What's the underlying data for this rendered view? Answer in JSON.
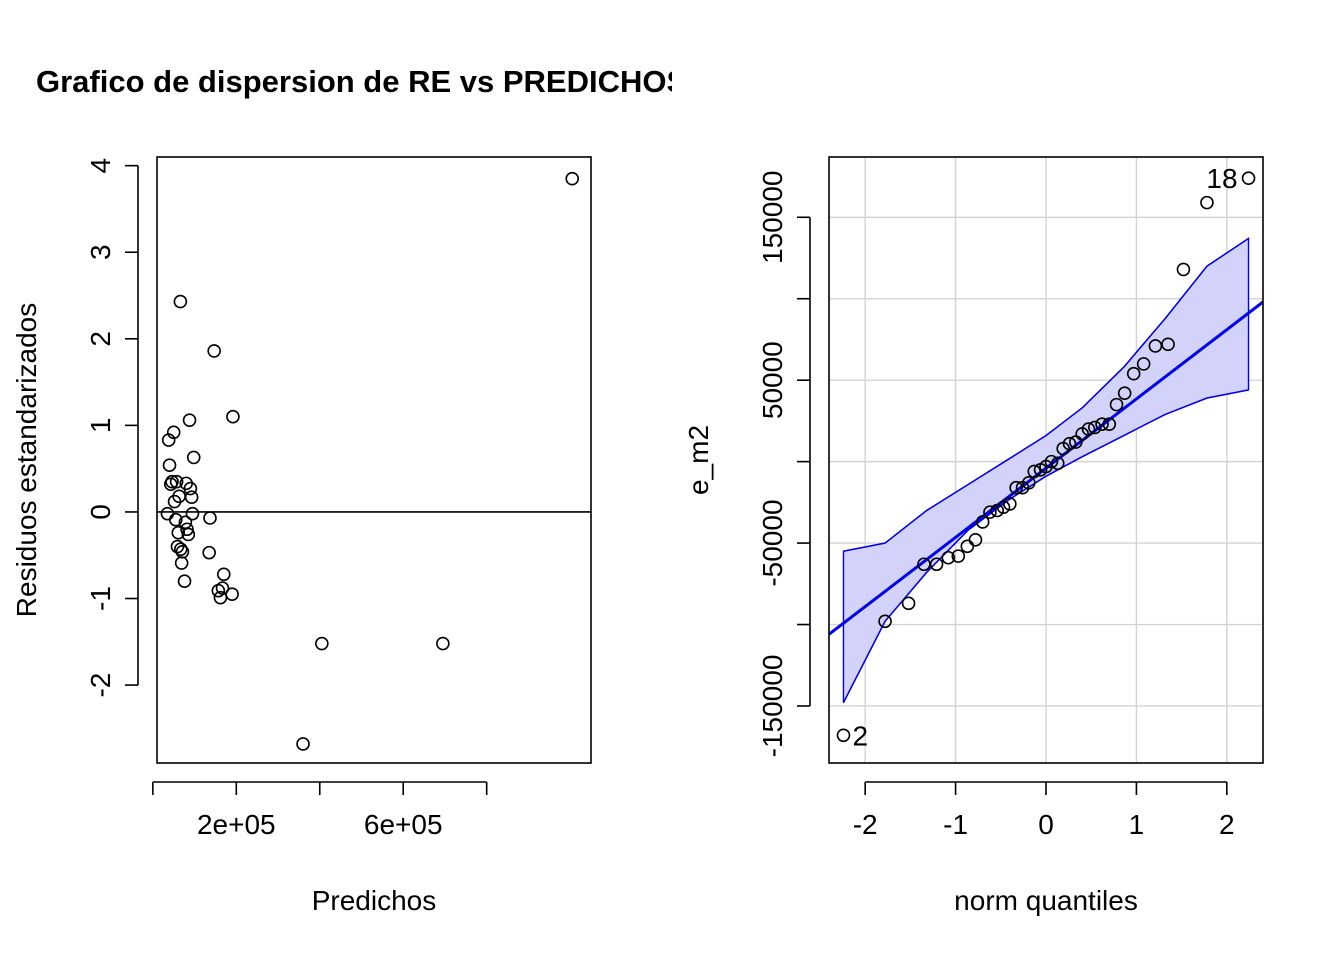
{
  "chart_data": [
    {
      "type": "scatter",
      "title": "Grafico de dispersion de RE vs PREDICHOS",
      "xlabel": "Predichos",
      "ylabel": "Residuos estandarizados",
      "xlim": [
        10000,
        1050000
      ],
      "ylim": [
        -2.9,
        4.1
      ],
      "x_ticks": [
        {
          "value": 0,
          "label": ""
        },
        {
          "value": 200000,
          "label": "2e+05"
        },
        {
          "value": 400000,
          "label": ""
        },
        {
          "value": 600000,
          "label": "6e+05"
        },
        {
          "value": 800000,
          "label": ""
        }
      ],
      "y_ticks": [
        -2,
        -1,
        0,
        1,
        2,
        3,
        4
      ],
      "hline": 0,
      "grid": false,
      "points": [
        {
          "x": 35000,
          "y": -0.02
        },
        {
          "x": 38000,
          "y": 0.83
        },
        {
          "x": 40000,
          "y": 0.54
        },
        {
          "x": 43000,
          "y": 0.32
        },
        {
          "x": 46000,
          "y": 0.35
        },
        {
          "x": 50000,
          "y": 0.92
        },
        {
          "x": 52000,
          "y": 0.12
        },
        {
          "x": 55000,
          "y": -0.09
        },
        {
          "x": 57000,
          "y": 0.35
        },
        {
          "x": 59000,
          "y": -0.4
        },
        {
          "x": 61000,
          "y": -0.24
        },
        {
          "x": 63000,
          "y": 0.18
        },
        {
          "x": 66000,
          "y": 2.43
        },
        {
          "x": 67000,
          "y": -0.43
        },
        {
          "x": 69000,
          "y": -0.59
        },
        {
          "x": 71000,
          "y": -0.46
        },
        {
          "x": 76000,
          "y": -0.8
        },
        {
          "x": 78000,
          "y": -0.12
        },
        {
          "x": 80000,
          "y": 0.33
        },
        {
          "x": 82000,
          "y": -0.2
        },
        {
          "x": 85000,
          "y": -0.26
        },
        {
          "x": 88000,
          "y": 1.06
        },
        {
          "x": 90000,
          "y": 0.27
        },
        {
          "x": 93000,
          "y": 0.17
        },
        {
          "x": 95000,
          "y": -0.02
        },
        {
          "x": 98000,
          "y": 0.63
        },
        {
          "x": 135000,
          "y": -0.47
        },
        {
          "x": 137000,
          "y": -0.07
        },
        {
          "x": 147000,
          "y": 1.86
        },
        {
          "x": 157000,
          "y": -0.91
        },
        {
          "x": 162000,
          "y": -0.99
        },
        {
          "x": 167000,
          "y": -0.88
        },
        {
          "x": 170000,
          "y": -0.72
        },
        {
          "x": 190000,
          "y": -0.95
        },
        {
          "x": 192000,
          "y": 1.1
        },
        {
          "x": 360000,
          "y": -2.68
        },
        {
          "x": 405000,
          "y": -1.52
        },
        {
          "x": 695000,
          "y": -1.52
        },
        {
          "x": 1005000,
          "y": 3.85
        }
      ]
    },
    {
      "type": "scatter",
      "xlabel": "norm quantiles",
      "ylabel": "e_m2",
      "xlim": [
        -2.4,
        2.4
      ],
      "ylim": [
        -185000,
        187000
      ],
      "x_ticks": [
        -2,
        -1,
        0,
        1,
        2
      ],
      "y_ticks": [
        {
          "value": -150000,
          "label": "-150000"
        },
        {
          "value": -100000,
          "label": ""
        },
        {
          "value": -50000,
          "label": "-50000"
        },
        {
          "value": 0,
          "label": ""
        },
        {
          "value": 50000,
          "label": "50000"
        },
        {
          "value": 100000,
          "label": ""
        },
        {
          "value": 150000,
          "label": "150000"
        }
      ],
      "grid": true,
      "colors": {
        "line": "#0000ee",
        "band_fill": "#d2d2fa",
        "band_edge": "#0000ee",
        "grid": "#d3d3d3"
      },
      "reference_line": {
        "x": [
          -2.4,
          2.4
        ],
        "y": [
          -106000,
          98000
        ]
      },
      "envelope": {
        "x": [
          -2.24,
          -1.78,
          -1.32,
          -0.86,
          -0.4,
          0.0,
          0.4,
          0.86,
          1.32,
          1.78,
          2.24
        ],
        "upper": [
          -55000,
          -50000,
          -30000,
          -14000,
          2000,
          16000,
          33000,
          58000,
          88000,
          120000,
          137000
        ],
        "lower": [
          -148000,
          -98000,
          -68000,
          -42000,
          -23000,
          -9000,
          3000,
          16000,
          29000,
          39000,
          44000
        ]
      },
      "points": [
        {
          "x": -2.24,
          "y": -168000
        },
        {
          "x": -1.78,
          "y": -98000
        },
        {
          "x": -1.52,
          "y": -87000
        },
        {
          "x": -1.35,
          "y": -63000
        },
        {
          "x": -1.21,
          "y": -63000
        },
        {
          "x": -1.08,
          "y": -59000
        },
        {
          "x": -0.97,
          "y": -58000
        },
        {
          "x": -0.87,
          "y": -52000
        },
        {
          "x": -0.78,
          "y": -48000
        },
        {
          "x": -0.7,
          "y": -37000
        },
        {
          "x": -0.62,
          "y": -31000
        },
        {
          "x": -0.54,
          "y": -30000
        },
        {
          "x": -0.47,
          "y": -28000
        },
        {
          "x": -0.4,
          "y": -26000
        },
        {
          "x": -0.33,
          "y": -16000
        },
        {
          "x": -0.26,
          "y": -16000
        },
        {
          "x": -0.19,
          "y": -13000
        },
        {
          "x": -0.13,
          "y": -6000
        },
        {
          "x": -0.06,
          "y": -5000
        },
        {
          "x": 0.0,
          "y": -3000
        },
        {
          "x": 0.06,
          "y": 0
        },
        {
          "x": 0.13,
          "y": -1000
        },
        {
          "x": 0.19,
          "y": 8000
        },
        {
          "x": 0.26,
          "y": 11000
        },
        {
          "x": 0.33,
          "y": 12000
        },
        {
          "x": 0.4,
          "y": 17000
        },
        {
          "x": 0.47,
          "y": 20000
        },
        {
          "x": 0.54,
          "y": 21000
        },
        {
          "x": 0.62,
          "y": 23000
        },
        {
          "x": 0.7,
          "y": 23000
        },
        {
          "x": 0.78,
          "y": 35000
        },
        {
          "x": 0.87,
          "y": 42000
        },
        {
          "x": 0.97,
          "y": 54000
        },
        {
          "x": 1.08,
          "y": 60000
        },
        {
          "x": 1.21,
          "y": 71000
        },
        {
          "x": 1.35,
          "y": 72000
        },
        {
          "x": 1.52,
          "y": 118000
        },
        {
          "x": 1.78,
          "y": 159000
        },
        {
          "x": 2.24,
          "y": 174000
        }
      ],
      "point_labels": [
        {
          "text": "18",
          "x": 2.24,
          "y": 174000,
          "side": "left"
        },
        {
          "text": "2",
          "x": -2.24,
          "y": -168000,
          "side": "right"
        }
      ]
    }
  ]
}
